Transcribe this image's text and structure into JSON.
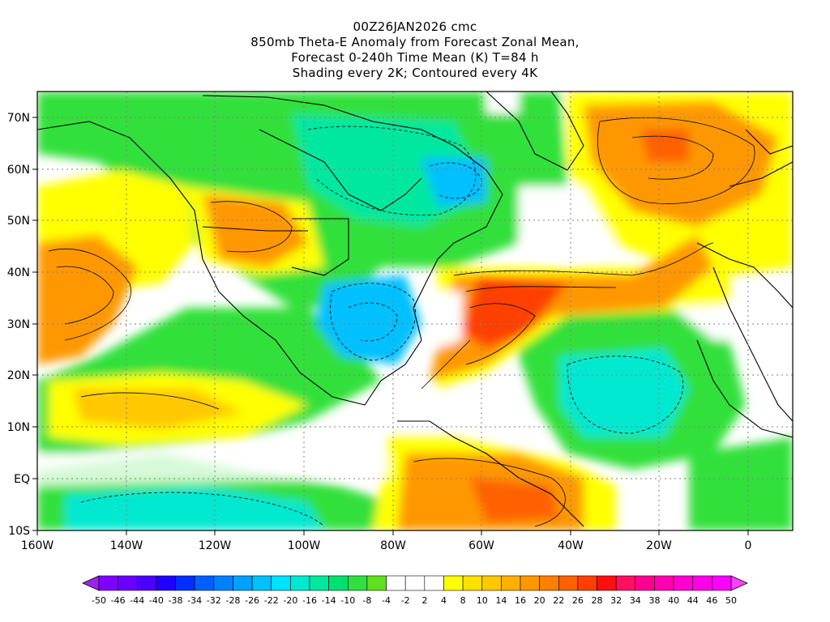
{
  "title": {
    "line1": "00Z26JAN2026 cmc",
    "line2": "850mb Theta-E Anomaly from Forecast Zonal Mean,",
    "line3": "Forecast 0-240h Time Mean (K) T=84 h",
    "line4": "Shading every 2K; Contoured every 4K"
  },
  "map": {
    "lon_range": [
      -160,
      10
    ],
    "lat_range": [
      -10,
      75
    ],
    "lat_ticks": [
      "70N",
      "60N",
      "50N",
      "40N",
      "30N",
      "20N",
      "10N",
      "EQ",
      "10S"
    ],
    "lon_ticks": [
      "160W",
      "140W",
      "120W",
      "100W",
      "80W",
      "60W",
      "40W",
      "20W",
      "0"
    ]
  },
  "colorbar": {
    "labels": [
      "-50",
      "-46",
      "-44",
      "-40",
      "-38",
      "-34",
      "-32",
      "-28",
      "-26",
      "-22",
      "-20",
      "-16",
      "-14",
      "-10",
      "-8",
      "-4",
      "-2",
      "2",
      "4",
      "8",
      "10",
      "14",
      "16",
      "20",
      "22",
      "26",
      "28",
      "32",
      "34",
      "38",
      "40",
      "44",
      "46",
      "50"
    ],
    "colors": [
      "#a020f0",
      "#8000ff",
      "#6a00ff",
      "#4b00ff",
      "#2000ff",
      "#0030ff",
      "#0060ff",
      "#0080ff",
      "#00a0ff",
      "#00c0ff",
      "#00e0ff",
      "#00e8d0",
      "#00e8a0",
      "#00e070",
      "#30e040",
      "#60e020",
      "#ffffff",
      "#ffffff",
      "#ffffff",
      "#ffff00",
      "#ffe000",
      "#ffc800",
      "#ffb000",
      "#ff9800",
      "#ff8000",
      "#ff6000",
      "#ff4000",
      "#ff1010",
      "#ff1060",
      "#ff0090",
      "#ff00b0",
      "#ff00d0",
      "#ff00e8",
      "#ff00ff",
      "#ff40ff"
    ]
  }
}
